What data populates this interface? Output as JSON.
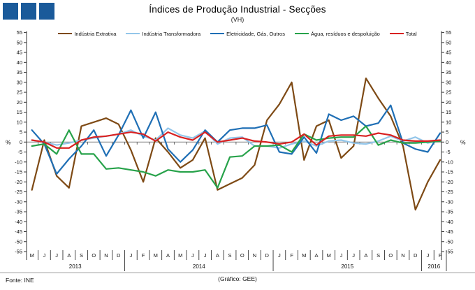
{
  "header": {
    "title": "Índices de Produção Industrial - Secções",
    "subtitle": "(VH)"
  },
  "logo": {
    "square_color": "#1a5a9a",
    "square_count": 3
  },
  "footer": {
    "source": "Fonte: INE",
    "credit": "(Gráfico: GEE)"
  },
  "axis": {
    "unit_label_left": "%",
    "unit_label_right": "%"
  },
  "chart_data": {
    "type": "line",
    "title": "Índices de Produção Industrial - Secções",
    "subtitle": "(VH)",
    "ylabel": "%",
    "ylim": [
      -55,
      55
    ],
    "ytick_step": 5,
    "grid": "zero-line-only",
    "legend_position": "top",
    "x_months": [
      "M",
      "J",
      "J",
      "A",
      "S",
      "O",
      "N",
      "D",
      "J",
      "F",
      "M",
      "A",
      "M",
      "J",
      "J",
      "A",
      "S",
      "O",
      "N",
      "D",
      "J",
      "F",
      "M",
      "A",
      "M",
      "J",
      "J",
      "A",
      "S",
      "O",
      "N",
      "D",
      "J",
      "F"
    ],
    "year_groups": [
      {
        "label": "2013",
        "start": 0,
        "count": 8
      },
      {
        "label": "2014",
        "start": 8,
        "count": 12
      },
      {
        "label": "2015",
        "start": 20,
        "count": 12
      },
      {
        "label": "2016",
        "start": 32,
        "count": 2
      }
    ],
    "series": [
      {
        "name": "Indústria Extrativa",
        "color": "#7e4a15",
        "values": [
          -24,
          1,
          -17,
          -23,
          8,
          10,
          12,
          9,
          -4,
          -20,
          2,
          -5,
          -13,
          -9,
          2,
          -24,
          -21,
          -18,
          -11.5,
          11,
          19,
          30,
          -9,
          8,
          11,
          -8,
          -2,
          32,
          22,
          13,
          -2,
          -34,
          -20,
          -9
        ]
      },
      {
        "name": "Indústria Transformadora",
        "color": "#93c6ea",
        "values": [
          1,
          0,
          -1.5,
          -0.5,
          1,
          2,
          3,
          4,
          6,
          3,
          1,
          7,
          3.5,
          2,
          5.5,
          -1,
          2,
          2.5,
          -2,
          -2,
          -3,
          -1,
          0.5,
          -2,
          0.5,
          1,
          -0.5,
          -1,
          0.5,
          3,
          0.5,
          2.5,
          -0.5,
          1
        ]
      },
      {
        "name": "Eletricidade, Gás, Outros",
        "color": "#1f6fb5",
        "values": [
          6,
          -1,
          -16,
          -8.5,
          -2,
          6,
          -7,
          3.5,
          16,
          2,
          15,
          -3.5,
          -10,
          -4,
          6,
          0,
          6,
          7,
          7,
          8.5,
          -5,
          -6,
          2.5,
          -5.5,
          14,
          11,
          13,
          8,
          9.5,
          18.5,
          -0.5,
          -3.5,
          -5,
          4.5
        ]
      },
      {
        "name": "Água, resíduos e despoluição",
        "color": "#27a24a",
        "values": [
          -2,
          -1,
          -6,
          6,
          -6,
          -6,
          -13.5,
          -13,
          -14,
          -15,
          -17,
          -14,
          -15,
          -15,
          -14,
          -23,
          -7.5,
          -7,
          -2,
          -2,
          -1.5,
          -5,
          4,
          1,
          2,
          2.5,
          2.5,
          8,
          -1.5,
          1,
          -0.5,
          -0.5,
          0,
          0.5
        ]
      },
      {
        "name": "Total",
        "color": "#d92121",
        "values": [
          1,
          0,
          -3,
          -3,
          1,
          2.5,
          3,
          4,
          5,
          4,
          0.5,
          5,
          2.5,
          1,
          5,
          0,
          1,
          2,
          0.5,
          0,
          -1,
          0,
          4,
          -1.5,
          3,
          3.5,
          3.5,
          3,
          4.5,
          3.5,
          1,
          0.5,
          0.5,
          1
        ]
      }
    ]
  }
}
